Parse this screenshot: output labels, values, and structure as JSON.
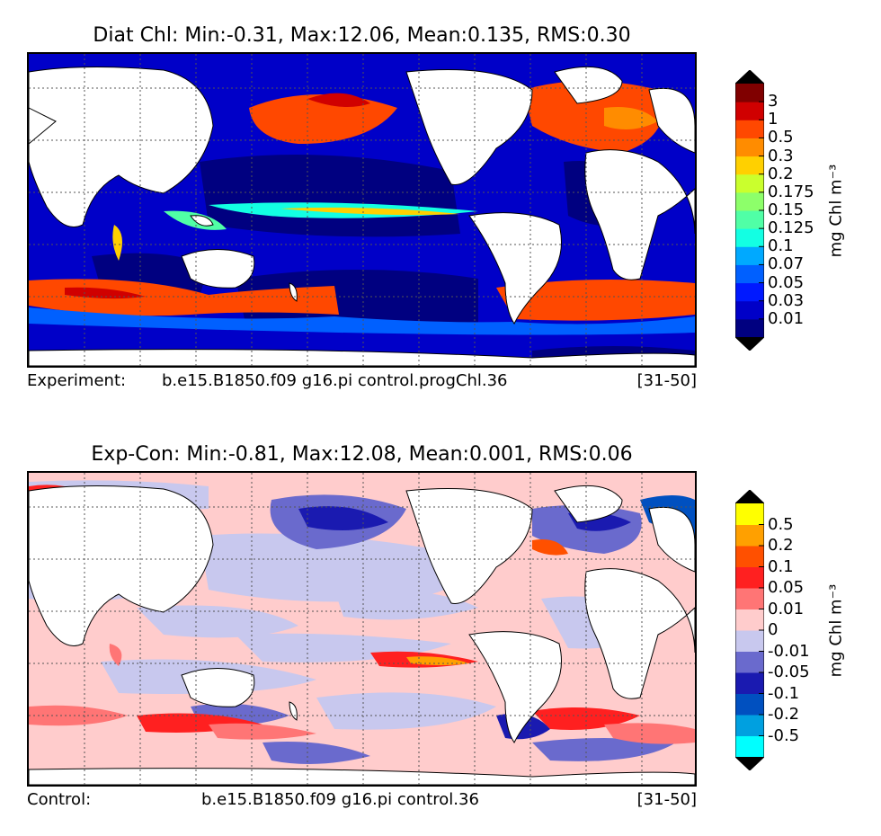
{
  "chart_data": [
    {
      "type": "heatmap",
      "title": "Diat Chl: Min:-0.31, Max:12.06, Mean:0.135, RMS:0.30",
      "footer": {
        "left": "Experiment:",
        "center": "b.e15.B1850.f09 g16.pi control.progChl.36",
        "right": "[31-50]"
      },
      "colorbar": {
        "unit": "mg Chl m⁻³",
        "extend": "both",
        "levels": [
          "0.01",
          "0.03",
          "0.05",
          "0.07",
          "0.1",
          "0.125",
          "0.15",
          "0.175",
          "0.2",
          "0.3",
          "0.5",
          "1",
          "3"
        ],
        "colors": [
          "#000080",
          "#0000c8",
          "#0019ff",
          "#0060ff",
          "#00a9ff",
          "#13ffe3",
          "#50ffa6",
          "#8dff6a",
          "#caff2d",
          "#ffd000",
          "#ff8c00",
          "#ff4800",
          "#d00000",
          "#800000"
        ],
        "under_color": "#000000",
        "over_color": "#000000"
      }
    },
    {
      "type": "heatmap",
      "title": "Exp-Con: Min:-0.81, Max:12.08, Mean:0.001, RMS:0.06",
      "footer": {
        "left": "Control:",
        "center": "b.e15.B1850.f09 g16.pi control.36",
        "right": "[31-50]"
      },
      "colorbar": {
        "unit": "mg Chl m⁻³",
        "extend": "both",
        "levels": [
          "-0.5",
          "-0.2",
          "-0.1",
          "-0.05",
          "-0.01",
          "0",
          "0.01",
          "0.05",
          "0.1",
          "0.2",
          "0.5"
        ],
        "colors": [
          "#00ffff",
          "#00a0e0",
          "#0050c0",
          "#1a1ab0",
          "#6a6acd",
          "#c8c8ee",
          "#ffcccc",
          "#ff7575",
          "#ff2020",
          "#ff5000",
          "#ffa000",
          "#ffff00"
        ],
        "under_color": "#000000",
        "over_color": "#000000"
      }
    }
  ]
}
